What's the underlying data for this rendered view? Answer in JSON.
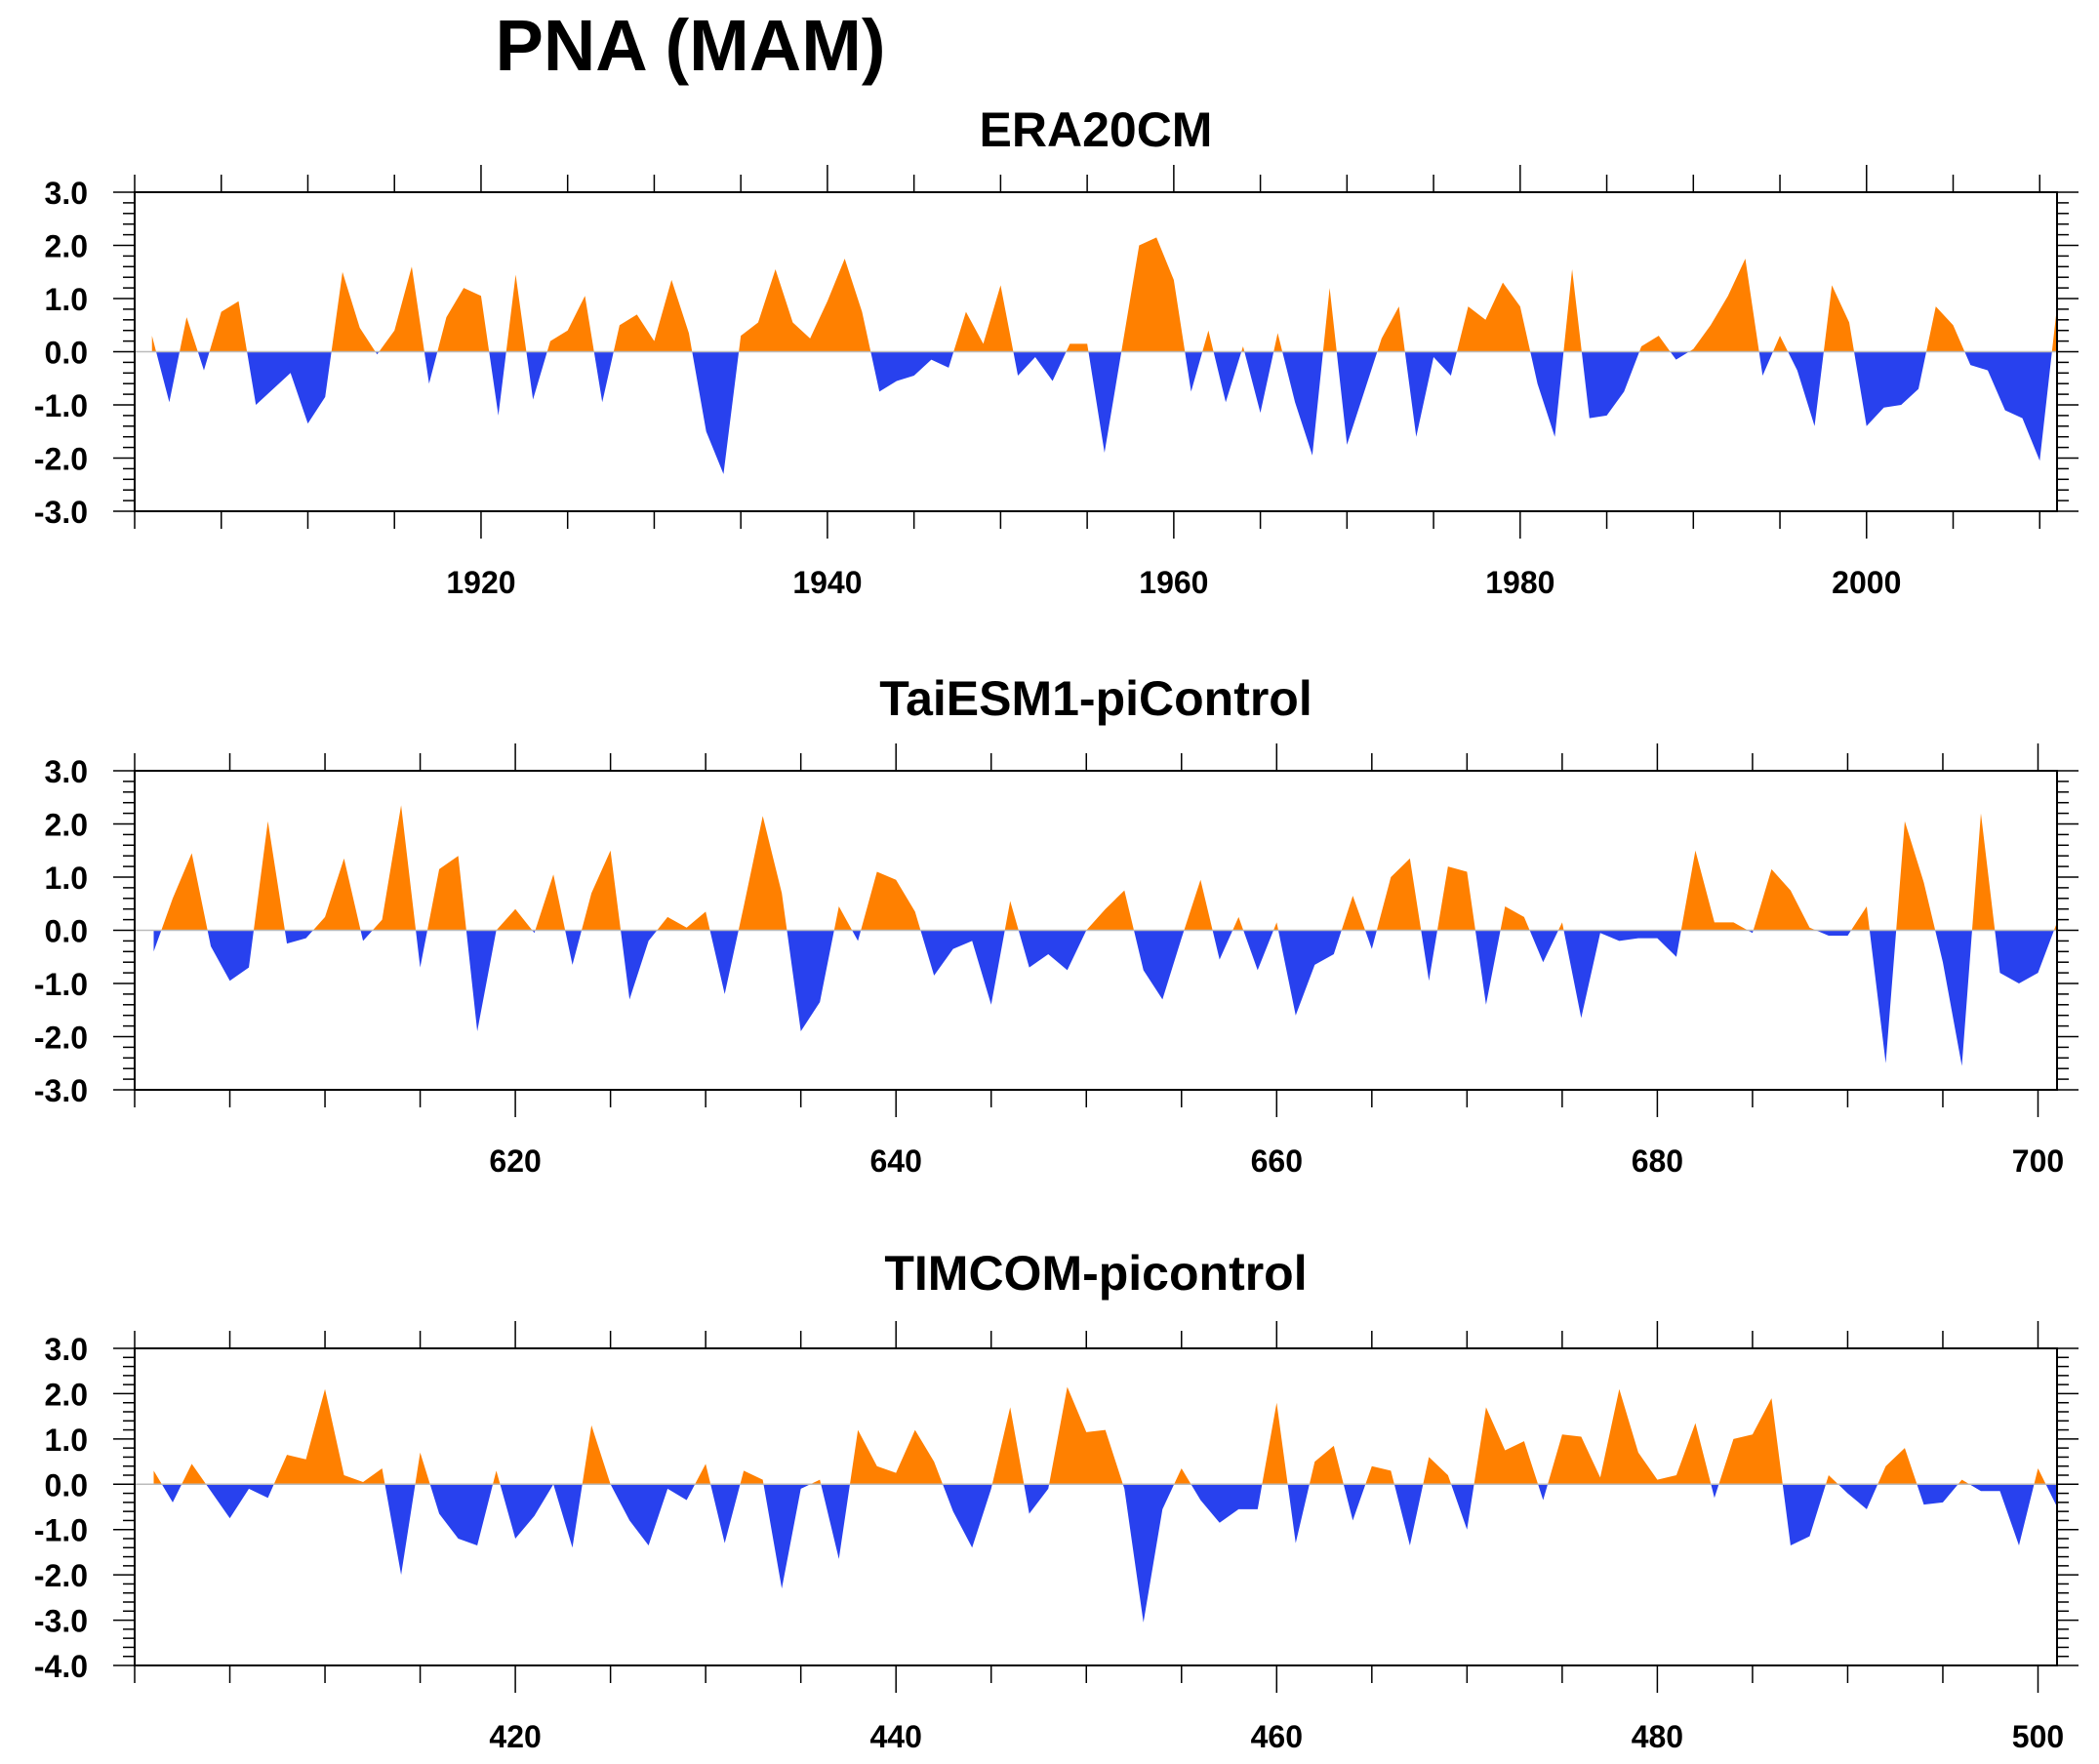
{
  "title": "PNA (MAM)",
  "colors": {
    "positive": "#ff8000",
    "negative": "#2841ee",
    "axis": "#000000"
  },
  "chart_data": [
    {
      "type": "area",
      "title": "ERA20CM",
      "xlabel": "",
      "ylabel": "",
      "xlim": [
        1900,
        2011
      ],
      "ylim": [
        -3,
        3
      ],
      "yticks": [
        3,
        2,
        1,
        0,
        -1,
        -2,
        -3
      ],
      "ytick_labels": [
        "3.0",
        "2.0",
        "1.0",
        "0.0",
        "-1.0",
        "-2.0",
        "-3.0"
      ],
      "xticks": [
        1920,
        1940,
        1960,
        1980,
        2000
      ],
      "xtick_labels": [
        "1920",
        "1940",
        "1960",
        "1980",
        "2000"
      ],
      "x_start": 1901,
      "values": [
        0.3,
        -0.95,
        0.65,
        -0.35,
        0.75,
        0.95,
        -1.0,
        -0.7,
        -0.4,
        -1.35,
        -0.85,
        1.5,
        0.45,
        -0.05,
        0.4,
        1.6,
        -0.6,
        0.65,
        1.2,
        1.05,
        -1.2,
        1.45,
        -0.9,
        0.2,
        0.4,
        1.05,
        -0.95,
        0.5,
        0.7,
        0.2,
        1.35,
        0.35,
        -1.5,
        -2.3,
        0.3,
        0.55,
        1.55,
        0.55,
        0.25,
        0.95,
        1.75,
        0.75,
        -0.75,
        -0.55,
        -0.45,
        -0.15,
        -0.3,
        0.75,
        0.15,
        1.25,
        -0.45,
        -0.1,
        -0.55,
        0.15,
        0.15,
        -1.9,
        0.05,
        2.0,
        2.15,
        1.35,
        -0.75,
        0.4,
        -0.95,
        0.1,
        -1.15,
        0.35,
        -0.95,
        -1.95,
        1.2,
        -1.75,
        -0.75,
        0.25,
        0.85,
        -1.6,
        -0.1,
        -0.45,
        0.85,
        0.6,
        1.3,
        0.85,
        -0.6,
        -1.6,
        1.55,
        -1.25,
        -1.2,
        -0.75,
        0.1,
        0.3,
        -0.15,
        0.05,
        0.5,
        1.05,
        1.75,
        -0.45,
        0.3,
        -0.35,
        -1.4,
        1.25,
        0.55,
        -1.4,
        -1.05,
        -1.0,
        -0.7,
        0.85,
        0.5,
        -0.25,
        -0.35,
        -1.1,
        -1.25,
        -2.05,
        0.85
      ]
    },
    {
      "type": "area",
      "title": "TaiESM1-piControl",
      "xlabel": "",
      "ylabel": "",
      "xlim": [
        600,
        701
      ],
      "ylim": [
        -3,
        3
      ],
      "yticks": [
        3,
        2,
        1,
        0,
        -1,
        -2,
        -3
      ],
      "ytick_labels": [
        "3.0",
        "2.0",
        "1.0",
        "0.0",
        "-1.0",
        "-2.0",
        "-3.0"
      ],
      "xticks": [
        620,
        640,
        660,
        680,
        700
      ],
      "xtick_labels": [
        "620",
        "640",
        "660",
        "680",
        "700"
      ],
      "x_start": 601,
      "values": [
        -0.4,
        0.6,
        1.45,
        -0.3,
        -0.95,
        -0.7,
        2.05,
        -0.25,
        -0.15,
        0.25,
        1.35,
        -0.2,
        0.2,
        2.35,
        -0.7,
        1.15,
        1.4,
        -1.9,
        0.0,
        0.4,
        -0.05,
        1.05,
        -0.65,
        0.7,
        1.5,
        -1.3,
        -0.2,
        0.25,
        0.05,
        0.35,
        -1.2,
        0.45,
        2.15,
        0.7,
        -1.9,
        -1.35,
        0.45,
        -0.2,
        1.1,
        0.95,
        0.35,
        -0.85,
        -0.35,
        -0.2,
        -1.4,
        0.55,
        -0.7,
        -0.45,
        -0.75,
        0.0,
        0.4,
        0.75,
        -0.75,
        -1.3,
        -0.15,
        0.95,
        -0.55,
        0.25,
        -0.75,
        0.15,
        -1.6,
        -0.65,
        -0.45,
        0.65,
        -0.35,
        1.0,
        1.35,
        -0.95,
        1.2,
        1.1,
        -1.4,
        0.45,
        0.25,
        -0.6,
        0.15,
        -1.65,
        -0.05,
        -0.2,
        -0.15,
        -0.15,
        -0.5,
        1.5,
        0.15,
        0.15,
        -0.05,
        1.15,
        0.75,
        0.05,
        -0.1,
        -0.1,
        0.45,
        -2.5,
        2.05,
        0.9,
        -0.6,
        -2.55,
        2.2,
        -0.8,
        -1.0,
        -0.8,
        0.15
      ]
    },
    {
      "type": "area",
      "title": "TIMCOM-picontrol",
      "xlabel": "",
      "ylabel": "",
      "xlim": [
        400,
        501
      ],
      "ylim": [
        -4,
        3
      ],
      "yticks": [
        3,
        2,
        1,
        0,
        -1,
        -2,
        -3,
        -4
      ],
      "ytick_labels": [
        "3.0",
        "2.0",
        "1.0",
        "0.0",
        "-1.0",
        "-2.0",
        "-3.0",
        "-4.0"
      ],
      "xticks": [
        420,
        440,
        460,
        480,
        500
      ],
      "xtick_labels": [
        "420",
        "440",
        "460",
        "480",
        "500"
      ],
      "x_start": 401,
      "values": [
        0.3,
        -0.4,
        0.45,
        -0.15,
        -0.75,
        -0.1,
        -0.3,
        0.65,
        0.55,
        2.1,
        0.2,
        0.05,
        0.35,
        -2.0,
        0.7,
        -0.65,
        -1.2,
        -1.35,
        0.3,
        -1.2,
        -0.7,
        0.0,
        -1.4,
        1.3,
        0.0,
        -0.8,
        -1.35,
        -0.1,
        -0.35,
        0.45,
        -1.3,
        0.3,
        0.1,
        -2.3,
        -0.1,
        0.1,
        -1.65,
        1.2,
        0.4,
        0.25,
        1.2,
        0.5,
        -0.6,
        -1.4,
        -0.1,
        1.7,
        -0.65,
        -0.1,
        2.15,
        1.15,
        1.2,
        -0.1,
        -3.05,
        -0.55,
        0.35,
        -0.35,
        -0.85,
        -0.55,
        -0.55,
        1.8,
        -1.3,
        0.5,
        0.85,
        -0.8,
        0.4,
        0.3,
        -1.35,
        0.6,
        0.2,
        -1.0,
        1.7,
        0.75,
        0.95,
        -0.35,
        1.1,
        1.05,
        0.15,
        2.1,
        0.7,
        0.1,
        0.2,
        1.35,
        -0.3,
        1.0,
        1.1,
        1.9,
        -1.35,
        -1.15,
        0.2,
        -0.2,
        -0.55,
        0.4,
        0.8,
        -0.45,
        -0.4,
        0.1,
        -0.15,
        -0.15,
        -1.35,
        0.35,
        -0.5
      ]
    }
  ]
}
